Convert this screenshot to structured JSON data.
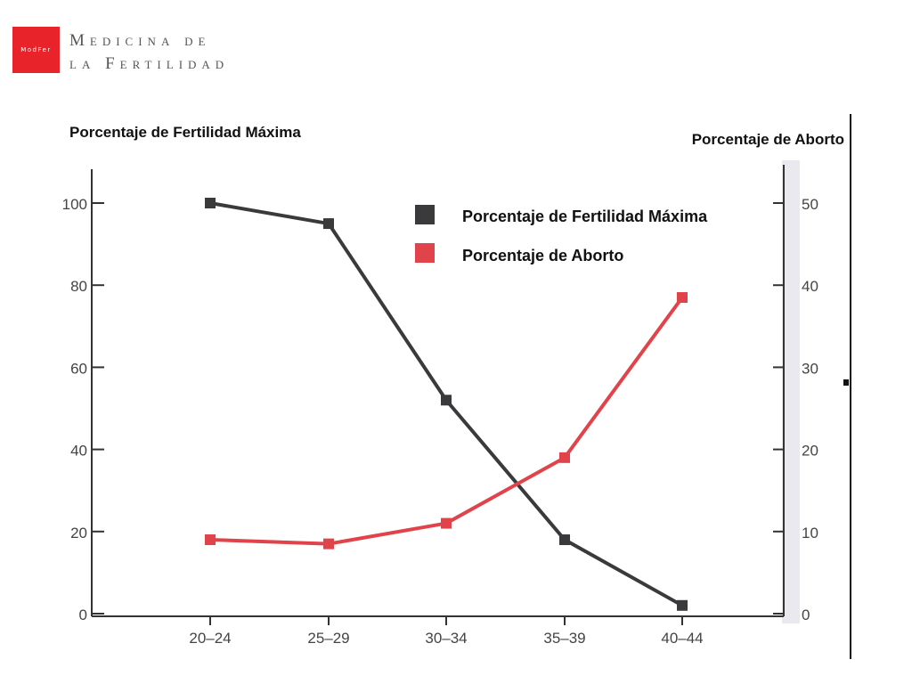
{
  "header": {
    "logo_text": "ModFer",
    "brand_line1": "Medicina de",
    "brand_line2": "la Fertilidad",
    "brand_color": "#e8232a"
  },
  "chart_data": {
    "type": "line",
    "categories": [
      "20–24",
      "25–29",
      "30–34",
      "35–39",
      "40–44"
    ],
    "ylabel": "Porcentaje de Fertilidad Máxima",
    "y2label": "Porcentaje de Aborto",
    "ylim": [
      0,
      100
    ],
    "y2lim": [
      0,
      50
    ],
    "yticks": [
      0,
      20,
      40,
      60,
      80,
      100
    ],
    "y2ticks": [
      0,
      10,
      20,
      30,
      40,
      50
    ],
    "grid": false,
    "legend_position": "top-center",
    "series": [
      {
        "name": "Porcentaje de Fertilidad Máxima",
        "axis": "left",
        "color": "#3a3a3c",
        "values": [
          100,
          95,
          52,
          18,
          2
        ]
      },
      {
        "name": "Porcentaje de Aborto",
        "axis": "right",
        "color": "#e0444a",
        "values": [
          9,
          8.5,
          11,
          19,
          38.5
        ]
      }
    ]
  }
}
